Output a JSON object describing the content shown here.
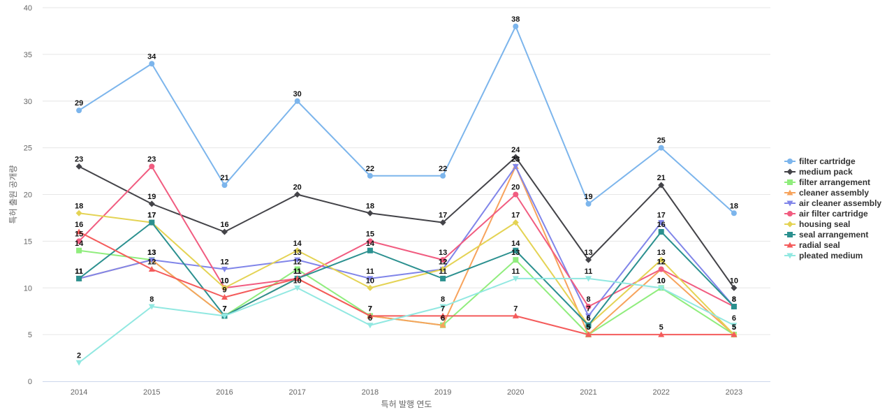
{
  "chart_data": {
    "type": "line",
    "x": [
      "2014",
      "2015",
      "2016",
      "2017",
      "2018",
      "2019",
      "2020",
      "2021",
      "2022",
      "2023"
    ],
    "xlabel": "특허 발행 연도",
    "ylabel": "특허 출원 공개량",
    "ylim": [
      0,
      40
    ],
    "yticks": [
      0,
      5,
      10,
      15,
      20,
      25,
      30,
      35,
      40
    ],
    "grid": true,
    "legend": "right",
    "series": [
      {
        "name": "filter cartridge",
        "color": "#7cb5ec",
        "marker": "circle",
        "values": [
          29,
          34,
          21,
          30,
          22,
          22,
          38,
          19,
          25,
          18
        ]
      },
      {
        "name": "medium pack",
        "color": "#434348",
        "marker": "diamond",
        "values": [
          23,
          19,
          16,
          20,
          18,
          17,
          24,
          13,
          21,
          10
        ]
      },
      {
        "name": "filter arrangement",
        "color": "#90ed7d",
        "marker": "square",
        "values": [
          14,
          13,
          7,
          12,
          7,
          6,
          13,
          5,
          10,
          5
        ]
      },
      {
        "name": "cleaner assembly",
        "color": "#f7a35c",
        "marker": "triangle",
        "values": [
          11,
          13,
          7,
          11,
          7,
          6,
          23,
          5,
          12,
          5
        ]
      },
      {
        "name": "air cleaner assembly",
        "color": "#8085e9",
        "marker": "triangle-down",
        "values": [
          11,
          13,
          12,
          13,
          11,
          12,
          23,
          7,
          17,
          8
        ]
      },
      {
        "name": "air filter cartridge",
        "color": "#f15c80",
        "marker": "circle",
        "values": [
          15,
          23,
          10,
          11,
          15,
          13,
          20,
          8,
          12,
          8
        ]
      },
      {
        "name": "housing seal",
        "color": "#e4d354",
        "marker": "diamond",
        "values": [
          18,
          17,
          10,
          14,
          10,
          12,
          17,
          6,
          13,
          5
        ]
      },
      {
        "name": "seal arrangement",
        "color": "#2b908f",
        "marker": "square",
        "values": [
          11,
          17,
          7,
          11,
          14,
          11,
          14,
          6,
          16,
          8
        ]
      },
      {
        "name": "radial seal",
        "color": "#f45b5b",
        "marker": "triangle",
        "values": [
          16,
          12,
          9,
          11,
          7,
          7,
          7,
          5,
          5,
          5
        ]
      },
      {
        "name": "pleated medium",
        "color": "#91e8e1",
        "marker": "triangle-down",
        "values": [
          2,
          8,
          7,
          10,
          6,
          8,
          11,
          11,
          10,
          6
        ]
      }
    ]
  }
}
